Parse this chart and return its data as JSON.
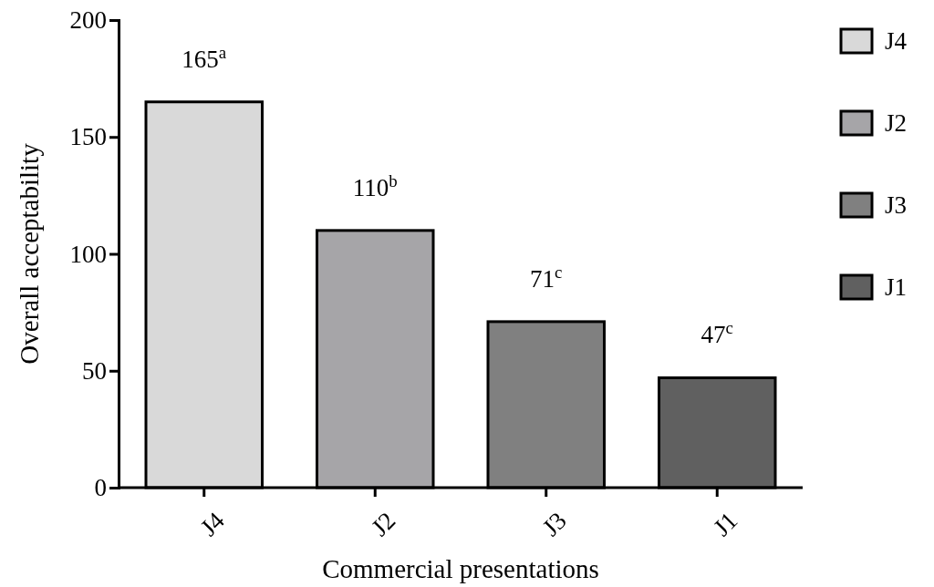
{
  "chart_data": {
    "type": "bar",
    "xlabel": "Commercial presentations",
    "ylabel": "Overall acceptability",
    "categories": [
      "J4",
      "J2",
      "J3",
      "J1"
    ],
    "stacked": true,
    "series": [
      {
        "name": "J4",
        "color": "#d9d9d9",
        "values": [
          165,
          null,
          null,
          null
        ],
        "value_labels": [
          "165$^{a}$",
          null,
          null,
          null
        ]
      },
      {
        "name": "J2",
        "color": "#a6a5a8",
        "values": [
          null,
          110,
          null,
          null
        ],
        "value_labels": [
          null,
          "110$^{b}$",
          null,
          null
        ]
      },
      {
        "name": "J3",
        "color": "#808080",
        "values": [
          null,
          null,
          71,
          null
        ],
        "value_labels": [
          null,
          null,
          "71$^{c}$",
          null
        ]
      },
      {
        "name": "J1",
        "color": "#606060",
        "values": [
          null,
          null,
          null,
          47
        ],
        "value_labels": [
          null,
          null,
          null,
          "47$^{c}$"
        ]
      }
    ],
    "ylim": [
      0,
      200
    ],
    "yticks": [
      0,
      50,
      100,
      150,
      200
    ],
    "grid": false,
    "legend": "top right"
  }
}
